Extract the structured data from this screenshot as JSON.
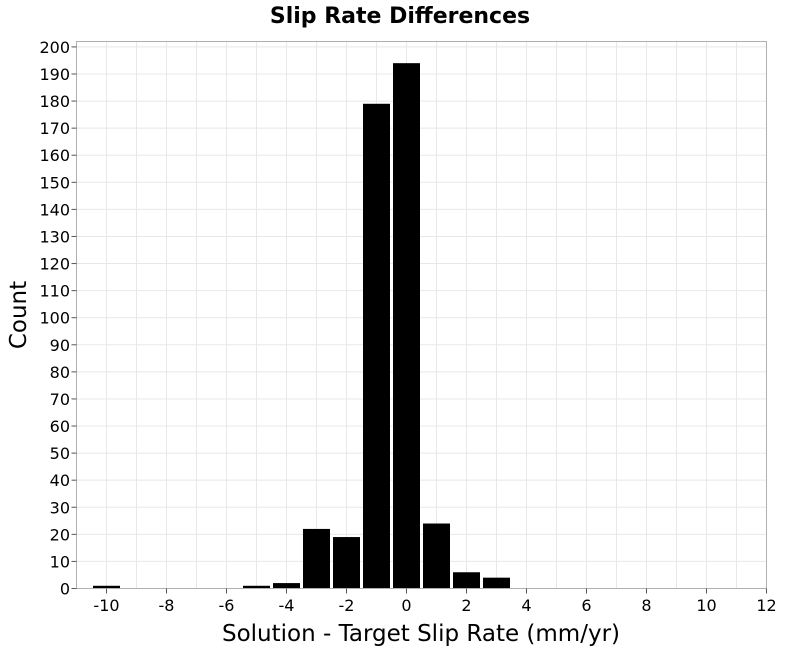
{
  "chart_data": {
    "type": "bar",
    "title": "Slip Rate Differences",
    "xlabel": "Solution - Target Slip Rate (mm/yr)",
    "ylabel": "Count",
    "xlim": [
      -11,
      12
    ],
    "ylim": [
      0,
      202
    ],
    "xticks": [
      -10,
      -8,
      -6,
      -4,
      -2,
      0,
      2,
      4,
      6,
      8,
      10,
      12
    ],
    "yticks": [
      0,
      10,
      20,
      30,
      40,
      50,
      60,
      70,
      80,
      90,
      100,
      110,
      120,
      130,
      140,
      150,
      160,
      170,
      180,
      190,
      200
    ],
    "bin_width": 1,
    "grid": true,
    "bars_color": "#000000",
    "bins": [
      {
        "x": -10,
        "count": 1
      },
      {
        "x": -5,
        "count": 1
      },
      {
        "x": -4,
        "count": 2
      },
      {
        "x": -3,
        "count": 22
      },
      {
        "x": -2,
        "count": 19
      },
      {
        "x": -1,
        "count": 179
      },
      {
        "x": 0,
        "count": 194
      },
      {
        "x": 1,
        "count": 24
      },
      {
        "x": 2,
        "count": 6
      },
      {
        "x": 3,
        "count": 4
      }
    ]
  }
}
